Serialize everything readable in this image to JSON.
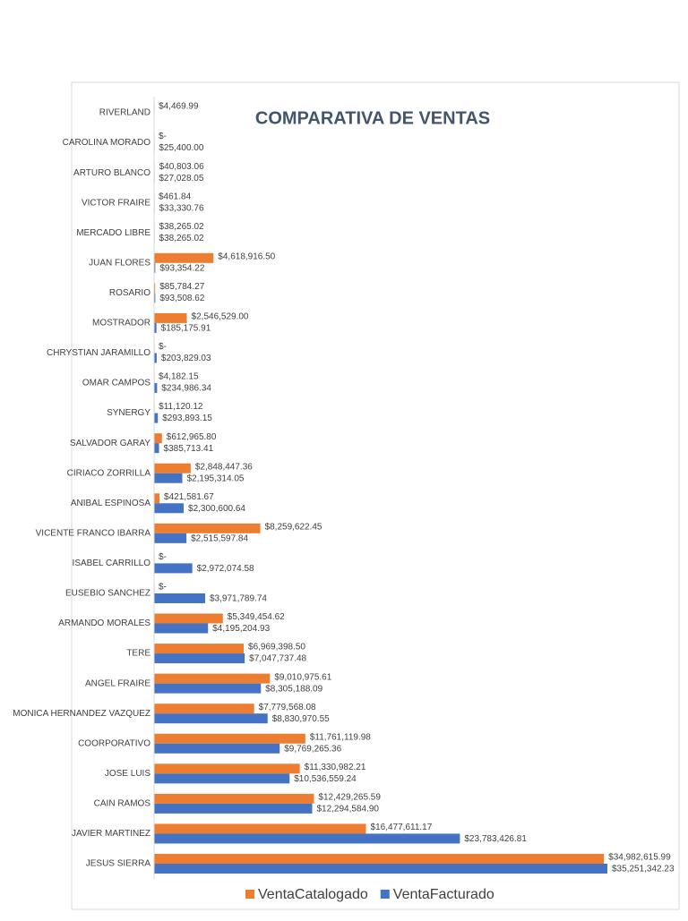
{
  "chart_data": {
    "type": "bar",
    "orientation": "horizontal",
    "title": "COMPARATIVA DE VENTAS",
    "categories": [
      "RIVERLAND",
      "CAROLINA MORADO",
      "ARTURO BLANCO",
      "VICTOR FRAIRE",
      "MERCADO LIBRE",
      "JUAN FLORES",
      "ROSARIO",
      "MOSTRADOR",
      "CHRYSTIAN JARAMILLO",
      "OMAR CAMPOS",
      "SYNERGY",
      "SALVADOR GARAY",
      "CIRIACO ZORRILLA",
      "ANIBAL ESPINOSA",
      "VICENTE FRANCO IBARRA",
      "ISABEL CARRILLO",
      "EUSEBIO SANCHEZ",
      "ARMANDO MORALES",
      "TERE",
      "ANGEL FRAIRE",
      "MONICA HERNANDEZ VAZQUEZ",
      "COORPORATIVO",
      "JOSE LUIS",
      "CAIN RAMOS",
      "JAVIER MARTINEZ",
      "JESUS SIERRA"
    ],
    "series": [
      {
        "name": "VentaCatalogado",
        "color": "#ed7d31",
        "values": [
          4469.99,
          0,
          40803.06,
          461.84,
          38265.02,
          4618916.5,
          85784.27,
          2546529.0,
          0,
          4182.15,
          11120.12,
          612965.8,
          2848447.36,
          421581.67,
          8259622.45,
          0,
          0,
          5349454.62,
          6969398.5,
          9010975.61,
          7779568.08,
          11761119.98,
          11330982.21,
          12429265.59,
          16477611.17,
          34982615.99
        ],
        "value_labels": [
          "$4,469.99",
          "$-",
          "$40,803.06",
          "$461.84",
          "$38,265.02",
          "$4,618,916.50",
          "$85,784.27",
          "$2,546,529.00",
          "$-",
          "$4,182.15",
          "$11,120.12",
          "$612,965.80",
          "$2,848,447.36",
          "$421,581.67",
          "$8,259,622.45",
          "$-",
          "$-",
          "$5,349,454.62",
          "$6,969,398.50",
          "$9,010,975.61",
          "$7,779,568.08",
          "$11,761,119.98",
          "$11,330,982.21",
          "$12,429,265.59",
          "$16,477,611.17",
          "$34,982,615.99"
        ]
      },
      {
        "name": "VentaFacturado",
        "color": "#4472c4",
        "values": [
          null,
          25400.0,
          27028.05,
          33330.76,
          38265.02,
          93354.22,
          93508.62,
          185175.91,
          203829.03,
          234986.34,
          293893.15,
          385713.41,
          2195314.05,
          2300600.64,
          2515597.84,
          2972074.58,
          3971789.74,
          4195204.93,
          7047737.48,
          8305188.09,
          8830970.55,
          9769265.36,
          10536559.24,
          12294584.9,
          23783426.81,
          35251342.23
        ],
        "value_labels": [
          null,
          "$25,400.00",
          "$27,028.05",
          "$33,330.76",
          "$38,265.02",
          "$93,354.22",
          "$93,508.62",
          "$185,175.91",
          "$203,829.03",
          "$234,986.34",
          "$293,893.15",
          "$385,713.41",
          "$2,195,314.05",
          "$2,300,600.64",
          "$2,515,597.84",
          "$2,972,074.58",
          "$3,971,789.74",
          "$4,195,204.93",
          "$7,047,737.48",
          "$8,305,188.09",
          "$8,830,970.55",
          "$9,769,265.36",
          "$10,536,559.24",
          "$12,294,584.90",
          "$23,783,426.81",
          "$35,251,342.23"
        ]
      }
    ],
    "legend": "bottom"
  }
}
